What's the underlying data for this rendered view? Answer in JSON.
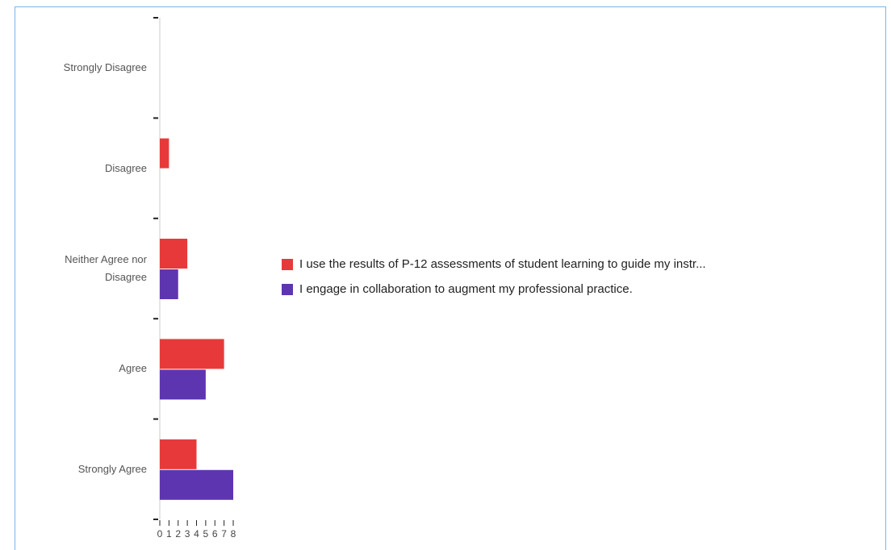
{
  "chart_data": {
    "type": "bar",
    "orientation": "horizontal",
    "categories": [
      "Strongly Disagree",
      "Disagree",
      "Neither Agree nor Disagree",
      "Agree",
      "Strongly Agree"
    ],
    "series": [
      {
        "name": "I use the results of P-12 assessments of student learning to guide my instr...",
        "color": "#e8393a",
        "values": [
          0,
          1,
          3,
          7,
          4
        ]
      },
      {
        "name": "I engage in collaboration to augment my professional practice.",
        "color": "#5e35b1",
        "values": [
          0,
          0,
          2,
          5,
          8
        ]
      }
    ],
    "xlim": [
      0,
      8
    ],
    "xticks": [
      0,
      1,
      2,
      3,
      4,
      5,
      6,
      7,
      8
    ],
    "legend": "right"
  }
}
